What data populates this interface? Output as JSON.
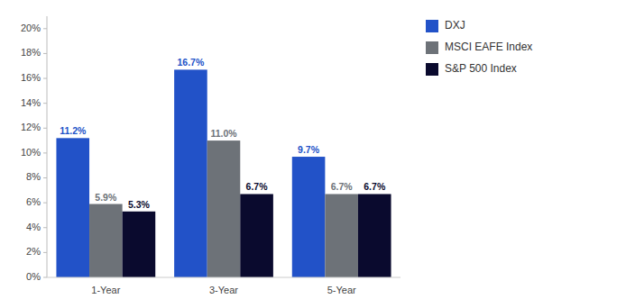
{
  "chart_data": {
    "type": "bar",
    "categories": [
      "1-Year",
      "3-Year",
      "5-Year"
    ],
    "series": [
      {
        "name": "DXJ",
        "color": "#2252c8",
        "values": [
          11.2,
          16.7,
          9.7
        ],
        "value_labels": [
          "11.2%",
          "16.7%",
          "9.7%"
        ]
      },
      {
        "name": "MSCI EAFE Index",
        "color": "#6d7278",
        "values": [
          5.9,
          11.0,
          6.7
        ],
        "value_labels": [
          "5.9%",
          "11.0%",
          "6.7%"
        ]
      },
      {
        "name": "S&P 500 Index",
        "color": "#0a0a2e",
        "values": [
          5.3,
          6.7,
          6.7
        ],
        "value_labels": [
          "5.3%",
          "6.7%",
          "6.7%"
        ]
      }
    ],
    "ylim": [
      0,
      21
    ],
    "yticks": [
      {
        "value": 0,
        "label": "0%"
      },
      {
        "value": 2,
        "label": "2%"
      },
      {
        "value": 4,
        "label": "4%"
      },
      {
        "value": 6,
        "label": "6%"
      },
      {
        "value": 8,
        "label": "8%"
      },
      {
        "value": 10,
        "label": "10%"
      },
      {
        "value": 12,
        "label": "12%"
      },
      {
        "value": 14,
        "label": "14%"
      },
      {
        "value": 16,
        "label": "16%"
      },
      {
        "value": 18,
        "label": "18%"
      },
      {
        "value": 20,
        "label": "20%"
      }
    ],
    "grid": false,
    "legend": "right",
    "data_labels": true
  }
}
